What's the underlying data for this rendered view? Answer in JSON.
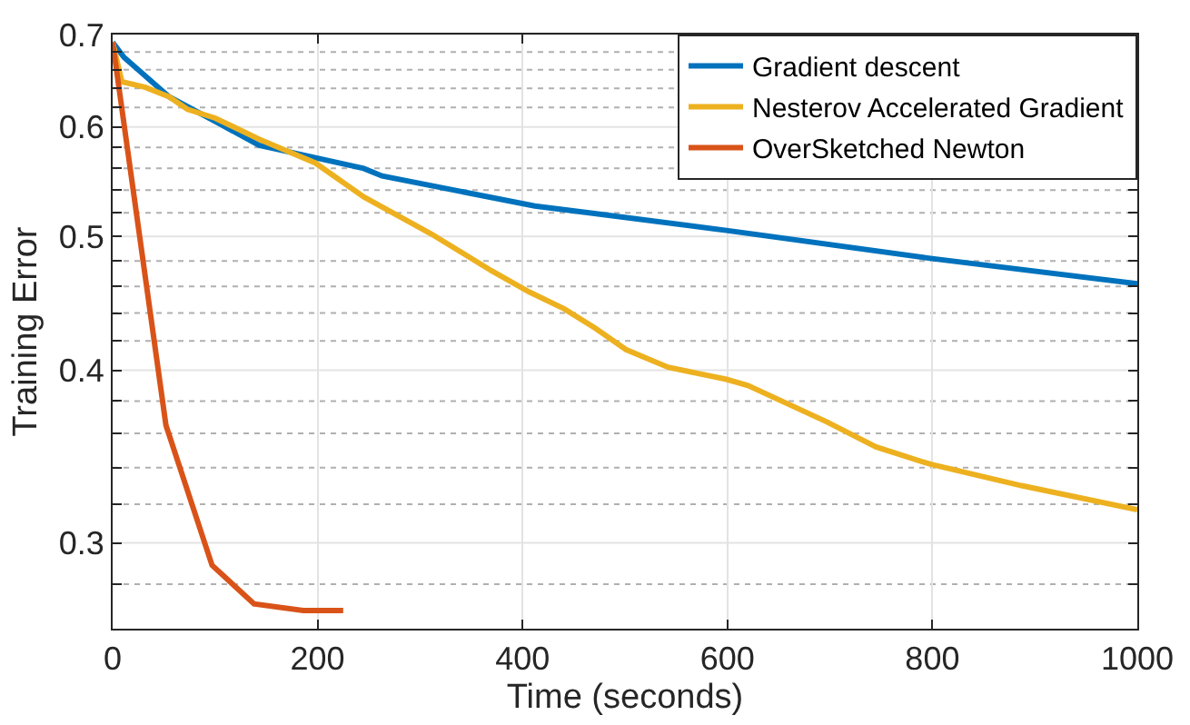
{
  "chart_data": {
    "type": "line",
    "xlabel": "Time (seconds)",
    "ylabel": "Training Error",
    "xlim": [
      0,
      1000
    ],
    "xticks": [
      0,
      200,
      400,
      600,
      800,
      1000
    ],
    "ylim": [
      0.26,
      0.7
    ],
    "log": true,
    "yticks": [
      {
        "value": 0.28,
        "label": null
      },
      0.3,
      {
        "value": 0.32,
        "label": null
      },
      {
        "value": 0.34,
        "label": null
      },
      {
        "value": 0.36,
        "label": null
      },
      {
        "value": 0.38,
        "label": null
      },
      0.4,
      {
        "value": 0.42,
        "label": null
      },
      {
        "value": 0.44,
        "label": null
      },
      {
        "value": 0.46,
        "label": null
      },
      {
        "value": 0.48,
        "label": null
      },
      0.5,
      {
        "value": 0.52,
        "label": null
      },
      {
        "value": 0.54,
        "label": null
      },
      {
        "value": 0.56,
        "label": null
      },
      {
        "value": 0.58,
        "label": null
      },
      0.6,
      {
        "value": 0.62,
        "label": null
      },
      {
        "value": 0.64,
        "label": null
      },
      {
        "value": 0.66,
        "label": null
      },
      {
        "value": 0.68,
        "label": null
      },
      0.7
    ],
    "grid": true,
    "legend": "top right",
    "line_style": "solid",
    "marker": "none",
    "series": [
      {
        "name": "Gradient descent",
        "color": "#0072bd",
        "x": [
          0,
          11,
          55,
          103,
          143,
          198,
          245,
          263,
          412,
          465,
          599,
          798,
          1000
        ],
        "values": [
          0.691,
          0.674,
          0.631,
          0.604,
          0.582,
          0.57,
          0.56,
          0.553,
          0.526,
          0.52,
          0.505,
          0.482,
          0.462
        ]
      },
      {
        "name": "Nesterov Accelerated Gradient",
        "color": "#edb120",
        "x": [
          0,
          9,
          32,
          55,
          73,
          100,
          143,
          198,
          245,
          311,
          370,
          406,
          441,
          471,
          501,
          542,
          599,
          620,
          697,
          745,
          798,
          887,
          1000
        ],
        "values": [
          0.691,
          0.647,
          0.641,
          0.631,
          0.618,
          0.609,
          0.588,
          0.565,
          0.534,
          0.502,
          0.472,
          0.456,
          0.443,
          0.429,
          0.414,
          0.402,
          0.394,
          0.39,
          0.367,
          0.352,
          0.342,
          0.33,
          0.317
        ]
      },
      {
        "name": "OverSketched Newton",
        "color": "#d95319",
        "x": [
          0,
          52,
          97,
          138,
          186,
          225
        ],
        "values": [
          0.691,
          0.365,
          0.289,
          0.271,
          0.268,
          0.268
        ]
      }
    ]
  }
}
